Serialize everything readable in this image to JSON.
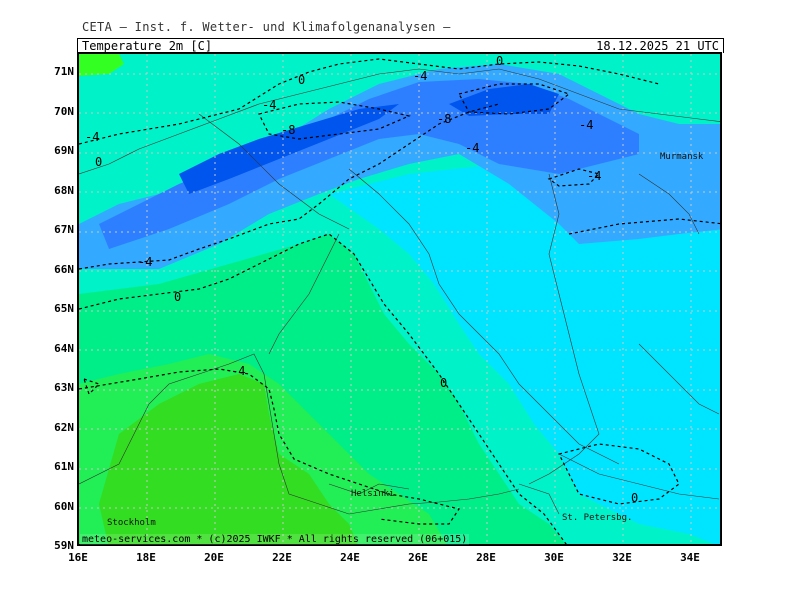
{
  "header": {
    "source": "CETA — Inst. f. Wetter- und Klimafolgenanalysen —",
    "parameter": "Temperature 2m [C]",
    "valid_time": "18.12.2025 21 UTC"
  },
  "axes": {
    "lat_labels": [
      "71N",
      "70N",
      "69N",
      "68N",
      "67N",
      "66N",
      "65N",
      "64N",
      "63N",
      "62N",
      "61N",
      "60N",
      "59N"
    ],
    "lon_labels": [
      "16E",
      "18E",
      "20E",
      "22E",
      "24E",
      "26E",
      "28E",
      "30E",
      "32E",
      "34E"
    ]
  },
  "cities": {
    "murmansk": "Murmansk",
    "helsinki": "Helsinki",
    "stockholm": "Stockholm",
    "st_petersburg": "St. Petersbg."
  },
  "contour_labels": [
    "0",
    "-4",
    "-4",
    "-8",
    "-8",
    "0",
    "-4",
    "-4",
    "-4",
    "0",
    "-4",
    "-4",
    "0",
    "0",
    "-4",
    "0"
  ],
  "footer": {
    "credit": "meteo-services.com * (c)2025 IWKF * All rights reserved (06+015)"
  },
  "colors": {
    "very_cold": "#0055ee",
    "cold": "#2e7fff",
    "cool": "#33aaff",
    "near_zero_cold": "#00e5ff",
    "near_zero": "#00f2c8",
    "mild": "#00ee88",
    "warm": "#22ee55",
    "warmest": "#33dd22"
  }
}
